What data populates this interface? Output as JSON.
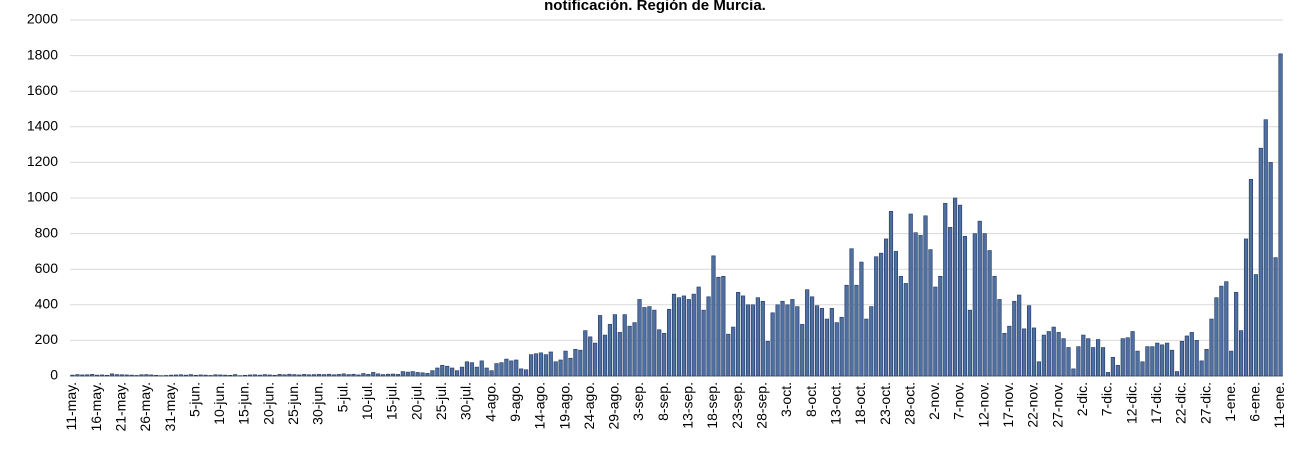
{
  "chart_data": {
    "type": "bar",
    "title": "notificación. Región de Murcia.",
    "categories": [
      "11-may.",
      null,
      null,
      null,
      null,
      "16-may.",
      null,
      null,
      null,
      null,
      "21-may.",
      null,
      null,
      null,
      null,
      "26-may.",
      null,
      null,
      null,
      null,
      "31-may.",
      null,
      null,
      null,
      null,
      "5-jun.",
      null,
      null,
      null,
      null,
      "10-jun.",
      null,
      null,
      null,
      null,
      "15-jun.",
      null,
      null,
      null,
      null,
      "20-jun.",
      null,
      null,
      null,
      null,
      "25-jun.",
      null,
      null,
      null,
      null,
      "30-jun.",
      null,
      null,
      null,
      null,
      "5-jul.",
      null,
      null,
      null,
      null,
      "10-jul.",
      null,
      null,
      null,
      null,
      "15-jul.",
      null,
      null,
      null,
      null,
      "20-jul.",
      null,
      null,
      null,
      null,
      "25-jul.",
      null,
      null,
      null,
      null,
      "30-jul.",
      null,
      null,
      null,
      null,
      "4-ago.",
      null,
      null,
      null,
      null,
      "9-ago.",
      null,
      null,
      null,
      null,
      "14-ago.",
      null,
      null,
      null,
      null,
      "19-ago.",
      null,
      null,
      null,
      null,
      "24-ago.",
      null,
      null,
      null,
      null,
      "29-ago.",
      null,
      null,
      null,
      null,
      "3-sep.",
      null,
      null,
      null,
      null,
      "8-sep.",
      null,
      null,
      null,
      null,
      "13-sep.",
      null,
      null,
      null,
      null,
      "18-sep.",
      null,
      null,
      null,
      null,
      "23-sep.",
      null,
      null,
      null,
      null,
      "28-sep.",
      null,
      null,
      null,
      null,
      "3-oct.",
      null,
      null,
      null,
      null,
      "8-oct.",
      null,
      null,
      null,
      null,
      "13-oct.",
      null,
      null,
      null,
      null,
      "18-oct.",
      null,
      null,
      null,
      null,
      "23-oct.",
      null,
      null,
      null,
      null,
      "28-oct.",
      null,
      null,
      null,
      null,
      "2-nov.",
      null,
      null,
      null,
      null,
      "7-nov.",
      null,
      null,
      null,
      null,
      "12-nov.",
      null,
      null,
      null,
      null,
      "17-nov.",
      null,
      null,
      null,
      null,
      "22-nov.",
      null,
      null,
      null,
      null,
      "27-nov.",
      null,
      null,
      null,
      null,
      "2-dic.",
      null,
      null,
      null,
      null,
      "7-dic.",
      null,
      null,
      null,
      null,
      "12-dic.",
      null,
      null,
      null,
      null,
      "17-dic.",
      null,
      null,
      null,
      null,
      "22-dic.",
      null,
      null,
      null,
      null,
      "27-dic.",
      null,
      null,
      null,
      null,
      "1-ene.",
      null,
      null,
      null,
      null,
      "6-ene.",
      null,
      null,
      null,
      null,
      "11-ene."
    ],
    "values": [
      5,
      8,
      6,
      7,
      9,
      5,
      6,
      4,
      12,
      8,
      7,
      6,
      5,
      3,
      7,
      8,
      6,
      4,
      2,
      3,
      5,
      6,
      7,
      5,
      8,
      4,
      6,
      5,
      3,
      7,
      6,
      5,
      4,
      8,
      2,
      4,
      6,
      7,
      5,
      8,
      6,
      4,
      9,
      7,
      10,
      8,
      6,
      9,
      7,
      8,
      9,
      8,
      10,
      7,
      9,
      12,
      8,
      10,
      6,
      14,
      9,
      20,
      12,
      8,
      10,
      11,
      9,
      25,
      22,
      25,
      20,
      18,
      15,
      30,
      45,
      60,
      55,
      45,
      30,
      50,
      80,
      75,
      50,
      85,
      45,
      30,
      70,
      75,
      95,
      85,
      90,
      40,
      35,
      120,
      125,
      130,
      120,
      135,
      80,
      90,
      140,
      100,
      150,
      145,
      255,
      220,
      185,
      340,
      230,
      290,
      345,
      245,
      345,
      280,
      300,
      430,
      385,
      390,
      370,
      260,
      240,
      375,
      460,
      440,
      450,
      430,
      460,
      500,
      370,
      445,
      675,
      555,
      560,
      235,
      275,
      470,
      450,
      400,
      400,
      440,
      420,
      195,
      355,
      400,
      420,
      400,
      430,
      390,
      290,
      485,
      445,
      395,
      380,
      320,
      380,
      300,
      330,
      510,
      715,
      510,
      640,
      320,
      390,
      670,
      690,
      770,
      925,
      700,
      560,
      520,
      910,
      805,
      790,
      900,
      710,
      500,
      560,
      970,
      835,
      1000,
      960,
      785,
      370,
      800,
      870,
      800,
      705,
      560,
      430,
      240,
      280,
      420,
      455,
      265,
      395,
      270,
      80,
      230,
      250,
      275,
      245,
      210,
      160,
      40,
      165,
      230,
      210,
      160,
      205,
      160,
      20,
      105,
      60,
      210,
      215,
      250,
      140,
      80,
      165,
      165,
      185,
      175,
      185,
      145,
      25,
      195,
      225,
      245,
      200,
      85,
      150,
      320,
      440,
      505,
      530,
      140,
      470,
      255,
      770,
      1105,
      570,
      1280,
      1440,
      1200,
      665,
      1810
    ],
    "color": "#4f6fa0",
    "ylim": [
      0,
      2000
    ],
    "yticks": [
      0,
      200,
      400,
      600,
      800,
      1000,
      1200,
      1400,
      1600,
      1800,
      2000
    ],
    "grid": true
  }
}
